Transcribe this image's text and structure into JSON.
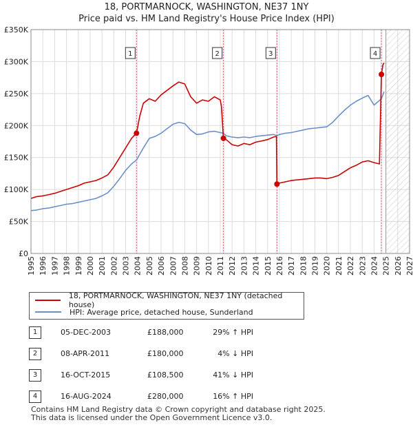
{
  "title_line1": "18, PORTMARNOCK, WASHINGTON, NE37 1NY",
  "title_line2": "Price paid vs. HM Land Registry's House Price Index (HPI)",
  "chart_data": {
    "type": "line",
    "xlim": [
      1995,
      2027
    ],
    "ylim": [
      0,
      350000
    ],
    "x_ticks": [
      1995,
      1996,
      1997,
      1998,
      1999,
      2000,
      2001,
      2002,
      2003,
      2004,
      2005,
      2006,
      2007,
      2008,
      2009,
      2010,
      2011,
      2012,
      2013,
      2014,
      2015,
      2016,
      2017,
      2018,
      2019,
      2020,
      2021,
      2022,
      2023,
      2024,
      2025,
      2026,
      2027
    ],
    "y_ticks": [
      {
        "value": 0,
        "label": "£0"
      },
      {
        "value": 50000,
        "label": "£50K"
      },
      {
        "value": 100000,
        "label": "£100K"
      },
      {
        "value": 150000,
        "label": "£150K"
      },
      {
        "value": 200000,
        "label": "£200K"
      },
      {
        "value": 250000,
        "label": "£250K"
      },
      {
        "value": 300000,
        "label": "£300K"
      },
      {
        "value": 350000,
        "label": "£350K"
      }
    ],
    "grid": true,
    "future_hatch_from": 2025.0,
    "series": [
      {
        "name": "18, PORTMARNOCK, WASHINGTON, NE37 1NY (detached house)",
        "color": "#cc0000",
        "points": [
          [
            1995.0,
            86000
          ],
          [
            1995.5,
            89000
          ],
          [
            1996.0,
            90000
          ],
          [
            1996.5,
            92000
          ],
          [
            1997.0,
            94000
          ],
          [
            1997.5,
            97000
          ],
          [
            1998.0,
            100000
          ],
          [
            1998.5,
            103000
          ],
          [
            1999.0,
            106000
          ],
          [
            1999.5,
            110000
          ],
          [
            2000.0,
            112000
          ],
          [
            2000.5,
            114000
          ],
          [
            2001.0,
            118000
          ],
          [
            2001.5,
            123000
          ],
          [
            2002.0,
            135000
          ],
          [
            2002.5,
            150000
          ],
          [
            2003.0,
            165000
          ],
          [
            2003.5,
            180000
          ],
          [
            2003.92,
            188000
          ],
          [
            2004.2,
            215000
          ],
          [
            2004.5,
            235000
          ],
          [
            2005.0,
            242000
          ],
          [
            2005.5,
            238000
          ],
          [
            2006.0,
            248000
          ],
          [
            2006.5,
            255000
          ],
          [
            2007.0,
            262000
          ],
          [
            2007.5,
            268000
          ],
          [
            2008.0,
            265000
          ],
          [
            2008.5,
            245000
          ],
          [
            2009.0,
            235000
          ],
          [
            2009.5,
            240000
          ],
          [
            2010.0,
            238000
          ],
          [
            2010.5,
            245000
          ],
          [
            2011.0,
            240000
          ],
          [
            2011.1,
            230000
          ],
          [
            2011.27,
            180000
          ],
          [
            2011.5,
            178000
          ],
          [
            2012.0,
            170000
          ],
          [
            2012.5,
            168000
          ],
          [
            2013.0,
            172000
          ],
          [
            2013.5,
            170000
          ],
          [
            2014.0,
            174000
          ],
          [
            2014.5,
            176000
          ],
          [
            2015.0,
            178000
          ],
          [
            2015.5,
            182000
          ],
          [
            2015.75,
            183000
          ],
          [
            2015.79,
            108500
          ],
          [
            2016.0,
            110000
          ],
          [
            2016.5,
            112000
          ],
          [
            2017.0,
            114000
          ],
          [
            2017.5,
            115000
          ],
          [
            2018.0,
            116000
          ],
          [
            2018.5,
            117000
          ],
          [
            2019.0,
            118000
          ],
          [
            2019.5,
            118000
          ],
          [
            2020.0,
            117000
          ],
          [
            2020.5,
            119000
          ],
          [
            2021.0,
            122000
          ],
          [
            2021.5,
            128000
          ],
          [
            2022.0,
            134000
          ],
          [
            2022.5,
            138000
          ],
          [
            2023.0,
            143000
          ],
          [
            2023.5,
            145000
          ],
          [
            2024.0,
            142000
          ],
          [
            2024.45,
            140000
          ],
          [
            2024.62,
            280000
          ],
          [
            2024.75,
            295000
          ],
          [
            2024.85,
            298000
          ]
        ]
      },
      {
        "name": "HPI: Average price, detached house, Sunderland",
        "color": "#6a8fc8",
        "points": [
          [
            1995.0,
            67000
          ],
          [
            1995.5,
            68000
          ],
          [
            1996.0,
            70000
          ],
          [
            1996.5,
            71000
          ],
          [
            1997.0,
            73000
          ],
          [
            1997.5,
            75000
          ],
          [
            1998.0,
            77000
          ],
          [
            1998.5,
            78000
          ],
          [
            1999.0,
            80000
          ],
          [
            1999.5,
            82000
          ],
          [
            2000.0,
            84000
          ],
          [
            2000.5,
            86000
          ],
          [
            2001.0,
            90000
          ],
          [
            2001.5,
            95000
          ],
          [
            2002.0,
            105000
          ],
          [
            2002.5,
            117000
          ],
          [
            2003.0,
            130000
          ],
          [
            2003.5,
            140000
          ],
          [
            2003.92,
            146000
          ],
          [
            2004.5,
            165000
          ],
          [
            2005.0,
            180000
          ],
          [
            2005.5,
            183000
          ],
          [
            2006.0,
            188000
          ],
          [
            2006.5,
            195000
          ],
          [
            2007.0,
            202000
          ],
          [
            2007.5,
            205000
          ],
          [
            2008.0,
            203000
          ],
          [
            2008.5,
            193000
          ],
          [
            2009.0,
            186000
          ],
          [
            2009.5,
            187000
          ],
          [
            2010.0,
            190000
          ],
          [
            2010.5,
            191000
          ],
          [
            2011.0,
            189000
          ],
          [
            2011.27,
            188000
          ],
          [
            2011.5,
            184000
          ],
          [
            2012.0,
            182000
          ],
          [
            2012.5,
            181000
          ],
          [
            2013.0,
            182000
          ],
          [
            2013.5,
            181000
          ],
          [
            2014.0,
            183000
          ],
          [
            2014.5,
            184000
          ],
          [
            2015.0,
            185000
          ],
          [
            2015.5,
            186000
          ],
          [
            2015.79,
            184000
          ],
          [
            2016.0,
            186000
          ],
          [
            2016.5,
            188000
          ],
          [
            2017.0,
            189000
          ],
          [
            2017.5,
            191000
          ],
          [
            2018.0,
            193000
          ],
          [
            2018.5,
            195000
          ],
          [
            2019.0,
            196000
          ],
          [
            2019.5,
            197000
          ],
          [
            2020.0,
            198000
          ],
          [
            2020.5,
            205000
          ],
          [
            2021.0,
            215000
          ],
          [
            2021.5,
            224000
          ],
          [
            2022.0,
            232000
          ],
          [
            2022.5,
            238000
          ],
          [
            2023.0,
            243000
          ],
          [
            2023.5,
            247000
          ],
          [
            2024.0,
            232000
          ],
          [
            2024.62,
            242000
          ],
          [
            2024.85,
            253000
          ]
        ]
      }
    ],
    "sales": [
      {
        "label": "1",
        "x": 2003.92,
        "y": 188000
      },
      {
        "label": "2",
        "x": 2011.27,
        "y": 180000
      },
      {
        "label": "3",
        "x": 2015.79,
        "y": 108500
      },
      {
        "label": "4",
        "x": 2024.62,
        "y": 280000
      }
    ]
  },
  "legend": {
    "property_label": "18, PORTMARNOCK, WASHINGTON, NE37 1NY (detached house)",
    "hpi_label": "HPI: Average price, detached house, Sunderland"
  },
  "sales_table": [
    {
      "num": "1",
      "date": "05-DEC-2003",
      "price": "£188,000",
      "hpi": "29% ↑ HPI"
    },
    {
      "num": "2",
      "date": "08-APR-2011",
      "price": "£180,000",
      "hpi": "4% ↓ HPI"
    },
    {
      "num": "3",
      "date": "16-OCT-2015",
      "price": "£108,500",
      "hpi": "41% ↓ HPI"
    },
    {
      "num": "4",
      "date": "16-AUG-2024",
      "price": "£280,000",
      "hpi": "16% ↑ HPI"
    }
  ],
  "footer_line1": "Contains HM Land Registry data © Crown copyright and database right 2025.",
  "footer_line2": "This data is licensed under the Open Government Licence v3.0."
}
